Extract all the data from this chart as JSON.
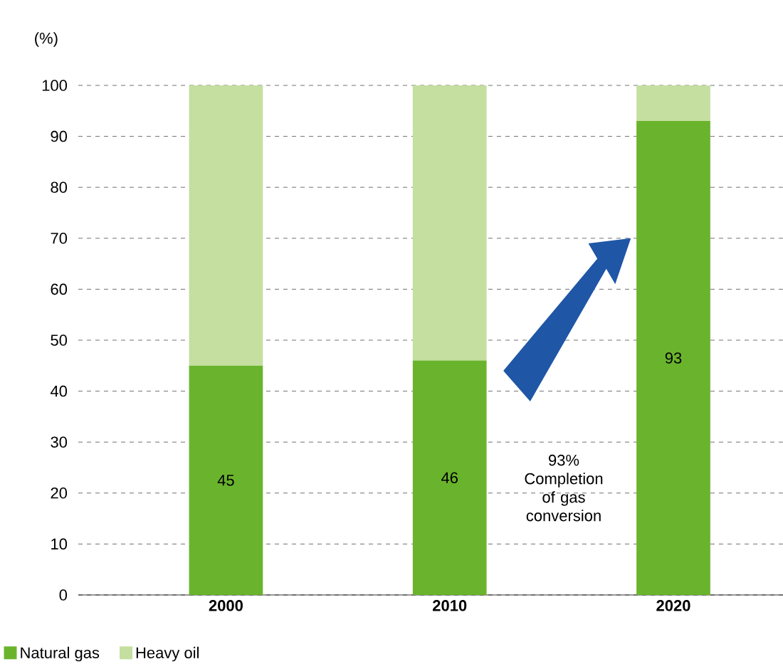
{
  "chart_data": {
    "type": "bar",
    "stacked": true,
    "ylabel": "(%)",
    "categories": [
      "2000",
      "2010",
      "2020"
    ],
    "series": [
      {
        "name": "Natural gas",
        "color": "#6ab42d",
        "values": [
          45,
          46,
          93
        ],
        "value_labels": [
          "45",
          "46",
          "93"
        ]
      },
      {
        "name": "Heavy oil",
        "color": "#c5dfa0",
        "values": [
          55,
          54,
          7
        ]
      }
    ],
    "ylim": [
      0,
      100
    ],
    "yticks": [
      0,
      10,
      20,
      30,
      40,
      50,
      60,
      70,
      80,
      90,
      100
    ],
    "grid": "y",
    "legend": "bottom left",
    "annotations": [
      "93%\nCompletion\nof gas\nconversion"
    ]
  }
}
